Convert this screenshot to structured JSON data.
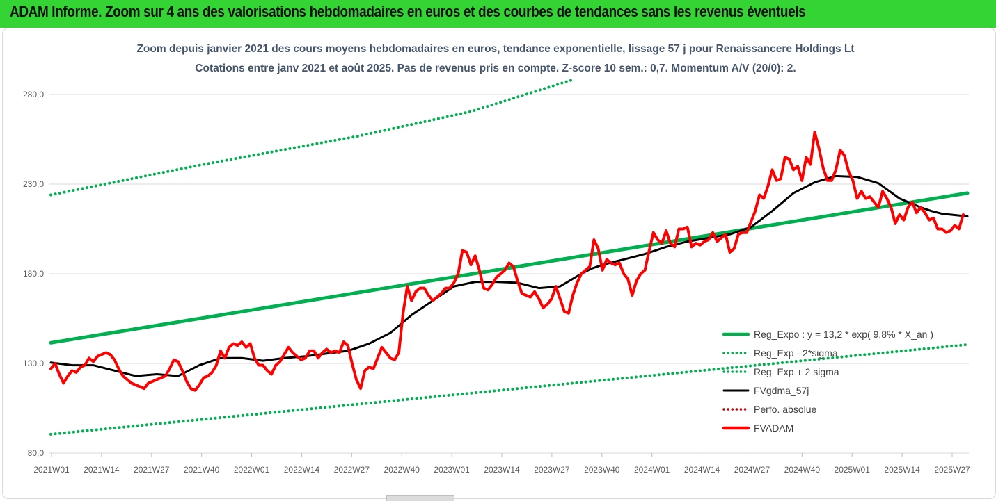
{
  "header": {
    "title": "ADAM Informe. Zoom sur 4 ans des valorisations hebdomadaires en euros et des courbes de tendances sans les revenus éventuels",
    "background": "#35d435"
  },
  "chart_data": {
    "type": "line",
    "subtitle_line1": "Zoom depuis janvier 2021 des cours moyens hebdomadaires en euros, tendance exponentielle, lissage 57 j pour Renaissancere Holdings Lt",
    "subtitle_line2": "Cotations entre janv 2021 et août 2025.  Pas de revenus pris en compte. Z-score 10 sem.: 0,7. Momentum A/V (20/0): 2.",
    "ylim": [
      80,
      280
    ],
    "y_ticks": [
      "80,0",
      "130,0",
      "180,0",
      "230,0",
      "280,0"
    ],
    "x_ticks": [
      "2021W01",
      "2021W14",
      "2021W27",
      "2021W40",
      "2022W01",
      "2022W14",
      "2022W27",
      "2022W40",
      "2023W01",
      "2023W14",
      "2023W27",
      "2023W40",
      "2024W01",
      "2024W14",
      "2024W27",
      "2024W40",
      "2025W01",
      "2025W14",
      "2025W27"
    ],
    "grid": "horizontal",
    "legend_position": "right",
    "legend": [
      {
        "label": "Reg_Expo : y = 13,2 * exp( 9,8% *  X_an )",
        "color": "#00b050",
        "style": "solid"
      },
      {
        "label": "Reg_Exp - 2*sigma",
        "color": "#00b050",
        "style": "dotted"
      },
      {
        "label": "Reg_Exp + 2 sigma",
        "color": "#00b050",
        "style": "dotted"
      },
      {
        "label": "FVgdma_57j",
        "color": "#000000",
        "style": "solid"
      },
      {
        "label": "Perfo. absolue",
        "color": "#c00000",
        "style": "dotted"
      },
      {
        "label": "FVADAM",
        "color": "#ff0000",
        "style": "solid"
      }
    ],
    "series": [
      {
        "name": "Reg_Expo : y = 13,2 * exp( 9,8% *  X_an )",
        "color": "#00b050",
        "style": "solid",
        "width": 5,
        "points": [
          [
            0,
            141.5
          ],
          [
            240,
            225
          ]
        ]
      },
      {
        "name": "Reg_Exp - 2*sigma",
        "color": "#00b050",
        "style": "dotted",
        "width": 4,
        "points": [
          [
            0,
            90.5
          ],
          [
            240,
            140.5
          ]
        ]
      },
      {
        "name": "Reg_Exp + 2 sigma",
        "color": "#00b050",
        "style": "dotted",
        "width": 4,
        "points": [
          [
            0,
            224
          ],
          [
            40,
            241
          ],
          [
            80,
            256.6
          ],
          [
            110,
            270.5
          ],
          [
            137,
            288.5
          ]
        ]
      },
      {
        "name": "FVgdma_57j",
        "color": "#000000",
        "style": "solid",
        "width": 3,
        "points": [
          [
            0,
            130.5
          ],
          [
            10,
            129
          ],
          [
            20,
            129
          ],
          [
            30,
            126
          ],
          [
            40,
            123
          ],
          [
            50,
            124
          ],
          [
            60,
            123
          ],
          [
            70,
            129
          ],
          [
            80,
            133
          ],
          [
            90,
            133
          ],
          [
            100,
            131.5
          ],
          [
            110,
            133
          ],
          [
            120,
            134
          ],
          [
            130,
            135.5
          ],
          [
            140,
            137
          ],
          [
            150,
            141
          ],
          [
            160,
            147
          ],
          [
            170,
            157
          ],
          [
            180,
            165
          ],
          [
            190,
            173
          ],
          [
            200,
            175.5
          ],
          [
            210,
            175.5
          ],
          [
            220,
            175
          ],
          [
            230,
            172
          ],
          [
            240,
            173
          ],
          [
            250,
            180
          ],
          [
            255,
            183
          ],
          [
            260,
            185
          ],
          [
            270,
            188
          ],
          [
            280,
            191
          ],
          [
            290,
            195
          ],
          [
            300,
            198
          ],
          [
            310,
            200
          ],
          [
            320,
            202
          ],
          [
            330,
            206
          ],
          [
            340,
            215
          ],
          [
            350,
            225
          ],
          [
            360,
            231
          ],
          [
            370,
            234.5
          ],
          [
            380,
            234
          ],
          [
            390,
            230.5
          ],
          [
            400,
            222
          ],
          [
            410,
            217
          ],
          [
            415,
            215
          ],
          [
            420,
            213.5
          ],
          [
            432,
            212
          ]
        ]
      },
      {
        "name": "FVADAM",
        "color": "#ff0000",
        "style": "solid",
        "width": 4,
        "points": [
          [
            0,
            127
          ],
          [
            2,
            130
          ],
          [
            4,
            124
          ],
          [
            6,
            119
          ],
          [
            8,
            123
          ],
          [
            10,
            126
          ],
          [
            12,
            125
          ],
          [
            14,
            128
          ],
          [
            16,
            129
          ],
          [
            18,
            133
          ],
          [
            20,
            131
          ],
          [
            22,
            134
          ],
          [
            24,
            135
          ],
          [
            26,
            136
          ],
          [
            28,
            135
          ],
          [
            30,
            132
          ],
          [
            32,
            127
          ],
          [
            34,
            123
          ],
          [
            36,
            121
          ],
          [
            38,
            119
          ],
          [
            40,
            118
          ],
          [
            42,
            117
          ],
          [
            44,
            116
          ],
          [
            46,
            119
          ],
          [
            48,
            120
          ],
          [
            50,
            121
          ],
          [
            52,
            122
          ],
          [
            54,
            123
          ],
          [
            56,
            127
          ],
          [
            58,
            132
          ],
          [
            60,
            131
          ],
          [
            62,
            126
          ],
          [
            64,
            120
          ],
          [
            66,
            116
          ],
          [
            68,
            115
          ],
          [
            70,
            118
          ],
          [
            72,
            122
          ],
          [
            74,
            123
          ],
          [
            76,
            125
          ],
          [
            78,
            129
          ],
          [
            80,
            137
          ],
          [
            82,
            133
          ],
          [
            84,
            139
          ],
          [
            86,
            141
          ],
          [
            88,
            140
          ],
          [
            90,
            142
          ],
          [
            92,
            139
          ],
          [
            94,
            141
          ],
          [
            96,
            133
          ],
          [
            98,
            129
          ],
          [
            100,
            129
          ],
          [
            102,
            126
          ],
          [
            104,
            124
          ],
          [
            106,
            129
          ],
          [
            108,
            131
          ],
          [
            110,
            135
          ],
          [
            112,
            139
          ],
          [
            114,
            136
          ],
          [
            116,
            134
          ],
          [
            118,
            132
          ],
          [
            120,
            133
          ],
          [
            122,
            137
          ],
          [
            124,
            137
          ],
          [
            126,
            133
          ],
          [
            128,
            136
          ],
          [
            130,
            138
          ],
          [
            132,
            136
          ],
          [
            134,
            137
          ],
          [
            136,
            136
          ],
          [
            138,
            142
          ],
          [
            140,
            140
          ],
          [
            142,
            130
          ],
          [
            144,
            121
          ],
          [
            146,
            116
          ],
          [
            148,
            126
          ],
          [
            150,
            128
          ],
          [
            152,
            127
          ],
          [
            154,
            133
          ],
          [
            156,
            139
          ],
          [
            158,
            136
          ],
          [
            160,
            133
          ],
          [
            162,
            132
          ],
          [
            164,
            136
          ],
          [
            166,
            158
          ],
          [
            168,
            173
          ],
          [
            170,
            165
          ],
          [
            172,
            170
          ],
          [
            174,
            172
          ],
          [
            176,
            172
          ],
          [
            178,
            168
          ],
          [
            180,
            165
          ],
          [
            182,
            167
          ],
          [
            184,
            169
          ],
          [
            186,
            172
          ],
          [
            188,
            172
          ],
          [
            190,
            175
          ],
          [
            192,
            180
          ],
          [
            194,
            193
          ],
          [
            196,
            192
          ],
          [
            198,
            185
          ],
          [
            200,
            190
          ],
          [
            202,
            182
          ],
          [
            204,
            172
          ],
          [
            206,
            171
          ],
          [
            208,
            174
          ],
          [
            210,
            178
          ],
          [
            212,
            180
          ],
          [
            214,
            182
          ],
          [
            216,
            186
          ],
          [
            218,
            184
          ],
          [
            220,
            176
          ],
          [
            222,
            169
          ],
          [
            224,
            168
          ],
          [
            226,
            167
          ],
          [
            228,
            170
          ],
          [
            230,
            166
          ],
          [
            232,
            161
          ],
          [
            234,
            163
          ],
          [
            236,
            166
          ],
          [
            238,
            173
          ],
          [
            240,
            166
          ],
          [
            242,
            159
          ],
          [
            244,
            158
          ],
          [
            246,
            168
          ],
          [
            248,
            175
          ],
          [
            250,
            180
          ],
          [
            252,
            182
          ],
          [
            254,
            184
          ],
          [
            256,
            199
          ],
          [
            258,
            194
          ],
          [
            260,
            182
          ],
          [
            262,
            188
          ],
          [
            264,
            186
          ],
          [
            266,
            185
          ],
          [
            268,
            186
          ],
          [
            270,
            180
          ],
          [
            272,
            177
          ],
          [
            274,
            168
          ],
          [
            276,
            176
          ],
          [
            278,
            180
          ],
          [
            280,
            182
          ],
          [
            282,
            193
          ],
          [
            284,
            203
          ],
          [
            286,
            199
          ],
          [
            288,
            197
          ],
          [
            290,
            204
          ],
          [
            292,
            197
          ],
          [
            294,
            195
          ],
          [
            296,
            205
          ],
          [
            298,
            205
          ],
          [
            300,
            206
          ],
          [
            302,
            195
          ],
          [
            304,
            197
          ],
          [
            306,
            196
          ],
          [
            308,
            198
          ],
          [
            310,
            199
          ],
          [
            312,
            203
          ],
          [
            314,
            198
          ],
          [
            316,
            200
          ],
          [
            318,
            202
          ],
          [
            320,
            192
          ],
          [
            322,
            194
          ],
          [
            324,
            202
          ],
          [
            326,
            203
          ],
          [
            328,
            203
          ],
          [
            330,
            209
          ],
          [
            332,
            215
          ],
          [
            334,
            224
          ],
          [
            336,
            222
          ],
          [
            338,
            229
          ],
          [
            340,
            238
          ],
          [
            342,
            232
          ],
          [
            344,
            233
          ],
          [
            346,
            245
          ],
          [
            348,
            244
          ],
          [
            350,
            238
          ],
          [
            352,
            240
          ],
          [
            354,
            232
          ],
          [
            356,
            245
          ],
          [
            358,
            241
          ],
          [
            360,
            259
          ],
          [
            362,
            250
          ],
          [
            364,
            239
          ],
          [
            366,
            232
          ],
          [
            368,
            232
          ],
          [
            370,
            238
          ],
          [
            372,
            249
          ],
          [
            374,
            246
          ],
          [
            376,
            237
          ],
          [
            378,
            232
          ],
          [
            380,
            222
          ],
          [
            382,
            226
          ],
          [
            384,
            222
          ],
          [
            386,
            223
          ],
          [
            388,
            220
          ],
          [
            390,
            217
          ],
          [
            392,
            226
          ],
          [
            394,
            222
          ],
          [
            396,
            217
          ],
          [
            398,
            208
          ],
          [
            400,
            213
          ],
          [
            402,
            210
          ],
          [
            404,
            217
          ],
          [
            406,
            220
          ],
          [
            408,
            214
          ],
          [
            410,
            217
          ],
          [
            412,
            214
          ],
          [
            414,
            210
          ],
          [
            416,
            211
          ],
          [
            418,
            205
          ],
          [
            420,
            205
          ],
          [
            422,
            203
          ],
          [
            424,
            204
          ],
          [
            426,
            207
          ],
          [
            428,
            205
          ],
          [
            430,
            213
          ]
        ]
      }
    ]
  }
}
